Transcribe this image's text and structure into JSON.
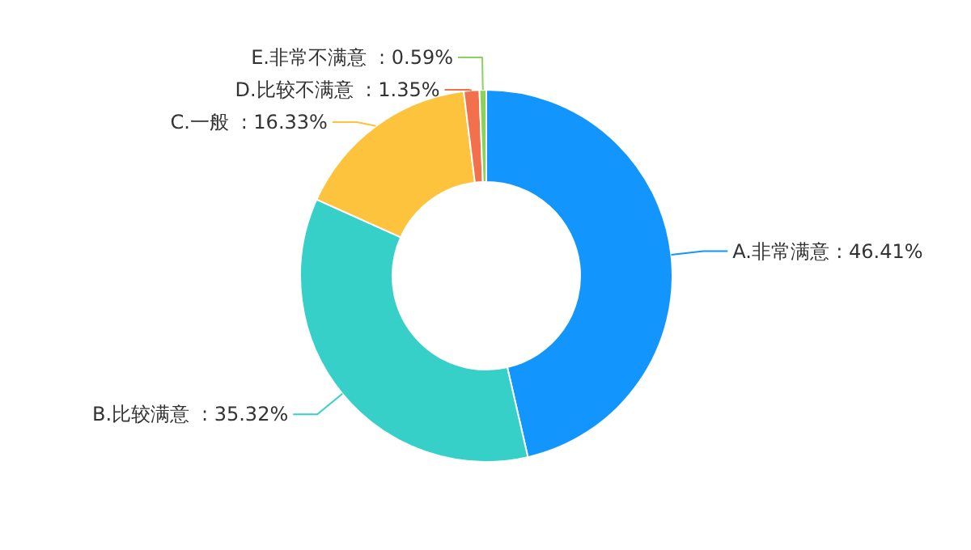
{
  "chart_data": {
    "type": "donut",
    "categories": [
      "A.非常满意",
      "B.比较满意",
      "C.一般",
      "D.比较不满意",
      "E.非常不满意"
    ],
    "values": [
      46.41,
      35.32,
      16.33,
      1.35,
      0.59
    ],
    "value_labels": [
      ": 46.41%",
      ": 35.32%",
      ": 16.33%",
      ": 1.35%",
      ": 0.59%"
    ],
    "colors": [
      "#1296fe",
      "#37d0c9",
      "#fdc33d",
      "#f2704b",
      "#8bd25a"
    ]
  }
}
